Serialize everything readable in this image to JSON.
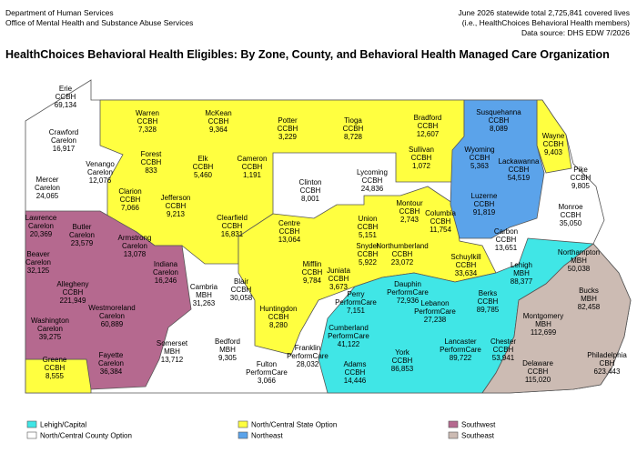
{
  "header": {
    "org_line1": "Department of Human Services",
    "org_line2": "Office of Mental Health and Substance Abuse Services",
    "note_line1": "June 2026 statewide total 2,725,841 covered lives",
    "note_line2": "(i.e., HealthChoices Behavioral Health members)",
    "note_line3": "Data source: DHS EDW 7/2026",
    "title": "HealthChoices Behavioral Health Eligibles: By Zone, County, and Behavioral Health Managed Care Organization"
  },
  "legend": [
    {
      "label": "Lehigh/Capital",
      "color": "#40e6e6"
    },
    {
      "label": "North/Central State Option",
      "color": "#ffff40"
    },
    {
      "label": "Southwest",
      "color": "#b5698f"
    },
    {
      "label": "North/Central County Option",
      "color": "#ffffff"
    },
    {
      "label": "Northeast",
      "color": "#5ba3ea"
    },
    {
      "label": "Southeast",
      "color": "#ccbbb3"
    }
  ],
  "counties": [
    {
      "name": "Erie",
      "org": "CCBH",
      "lives": "69,134"
    },
    {
      "name": "Crawford",
      "org": "Carelon",
      "lives": "16,917"
    },
    {
      "name": "Warren",
      "org": "CCBH",
      "lives": "7,328"
    },
    {
      "name": "McKean",
      "org": "CCBH",
      "lives": "9,364"
    },
    {
      "name": "Potter",
      "org": "CCBH",
      "lives": "3,229"
    },
    {
      "name": "Tioga",
      "org": "CCBH",
      "lives": "8,728"
    },
    {
      "name": "Bradford",
      "org": "CCBH",
      "lives": "12,607"
    },
    {
      "name": "Susquehanna",
      "org": "CCBH",
      "lives": "8,089"
    },
    {
      "name": "Wayne",
      "org": "CCBH",
      "lives": "9,403"
    },
    {
      "name": "Venango",
      "org": "Carelon",
      "lives": "12,076"
    },
    {
      "name": "Forest",
      "org": "CCBH",
      "lives": "833"
    },
    {
      "name": "Elk",
      "org": "CCBH",
      "lives": "5,460"
    },
    {
      "name": "Cameron",
      "org": "CCBH",
      "lives": "1,191"
    },
    {
      "name": "Mercer",
      "org": "Carelon",
      "lives": "24,065"
    },
    {
      "name": "Clarion",
      "org": "CCBH",
      "lives": "7,066"
    },
    {
      "name": "Jefferson",
      "org": "CCBH",
      "lives": "9,213"
    },
    {
      "name": "Clinton",
      "org": "CCBH",
      "lives": "8,001"
    },
    {
      "name": "Lycoming",
      "org": "CCBH",
      "lives": "24,836"
    },
    {
      "name": "Sullivan",
      "org": "CCBH",
      "lives": "1,072"
    },
    {
      "name": "Wyoming",
      "org": "CCBH",
      "lives": "5,363"
    },
    {
      "name": "Lackawanna",
      "org": "CCBH",
      "lives": "54,519"
    },
    {
      "name": "Pike",
      "org": "CCBH",
      "lives": "9,805"
    },
    {
      "name": "Luzerne",
      "org": "CCBH",
      "lives": "91,819"
    },
    {
      "name": "Monroe",
      "org": "CCBH",
      "lives": "35,050"
    },
    {
      "name": "Lawrence",
      "org": "Carelon",
      "lives": "20,369"
    },
    {
      "name": "Butler",
      "org": "Carelon",
      "lives": "23,579"
    },
    {
      "name": "Armstrong",
      "org": "Carelon",
      "lives": "13,078"
    },
    {
      "name": "Clearfield",
      "org": "CCBH",
      "lives": "16,831"
    },
    {
      "name": "Centre",
      "org": "CCBH",
      "lives": "13,064"
    },
    {
      "name": "Union",
      "org": "CCBH",
      "lives": "5,151"
    },
    {
      "name": "Montour",
      "org": "CCBH",
      "lives": "2,743"
    },
    {
      "name": "Columbia",
      "org": "CCBH",
      "lives": "11,754"
    },
    {
      "name": "Carbon",
      "org": "CCBH",
      "lives": "13,651"
    },
    {
      "name": "Beaver",
      "org": "Carelon",
      "lives": "32,125"
    },
    {
      "name": "Indiana",
      "org": "Carelon",
      "lives": "16,246"
    },
    {
      "name": "Snyder",
      "org": "CCBH",
      "lives": "5,922"
    },
    {
      "name": "Northumberland",
      "org": "CCBH",
      "lives": "23,072"
    },
    {
      "name": "Schuylkill",
      "org": "CCBH",
      "lives": "33,634"
    },
    {
      "name": "Northampton",
      "org": "MBH",
      "lives": "50,038"
    },
    {
      "name": "Lehigh",
      "org": "MBH",
      "lives": "88,377"
    },
    {
      "name": "Allegheny",
      "org": "CCBH",
      "lives": "221,949"
    },
    {
      "name": "Mifflin",
      "org": "CCBH",
      "lives": "9,784"
    },
    {
      "name": "Juniata",
      "org": "CCBH",
      "lives": "3,673"
    },
    {
      "name": "Cambria",
      "org": "MBH",
      "lives": "31,263"
    },
    {
      "name": "Blair",
      "org": "CCBH",
      "lives": "30,058"
    },
    {
      "name": "Perry",
      "org": "PerformCare",
      "lives": "7,151"
    },
    {
      "name": "Dauphin",
      "org": "PerformCare",
      "lives": "72,936"
    },
    {
      "name": "Berks",
      "org": "CCBH",
      "lives": "89,785"
    },
    {
      "name": "Bucks",
      "org": "MBH",
      "lives": "82,458"
    },
    {
      "name": "Lebanon",
      "org": "PerformCare",
      "lives": "27,238"
    },
    {
      "name": "Westmoreland",
      "org": "Carelon",
      "lives": "60,889"
    },
    {
      "name": "Huntingdon",
      "org": "CCBH",
      "lives": "8,280"
    },
    {
      "name": "Montgomery",
      "org": "MBH",
      "lives": "112,699"
    },
    {
      "name": "Washington",
      "org": "Carelon",
      "lives": "39,275"
    },
    {
      "name": "Fayette",
      "org": "Carelon",
      "lives": "36,384"
    },
    {
      "name": "Somerset",
      "org": "MBH",
      "lives": "13,712"
    },
    {
      "name": "Bedford",
      "org": "MBH",
      "lives": "9,305"
    },
    {
      "name": "Fulton",
      "org": "PerformCare",
      "lives": "3,066"
    },
    {
      "name": "Franklin",
      "org": "PerformCare",
      "lives": "28,032"
    },
    {
      "name": "Cumberland",
      "org": "PerformCare",
      "lives": "41,122"
    },
    {
      "name": "Lancaster",
      "org": "PerformCare",
      "lives": "89,722"
    },
    {
      "name": "York",
      "org": "CCBH",
      "lives": "86,853"
    },
    {
      "name": "Adams",
      "org": "CCBH",
      "lives": "14,446"
    },
    {
      "name": "Chester",
      "org": "CCBH",
      "lives": "53,941"
    },
    {
      "name": "Delaware",
      "org": "CCBH",
      "lives": "115,020"
    },
    {
      "name": "Philadelphia",
      "org": "CBH",
      "lives": "623,443"
    },
    {
      "name": "Greene",
      "org": "CCBH",
      "lives": "8,555"
    }
  ]
}
